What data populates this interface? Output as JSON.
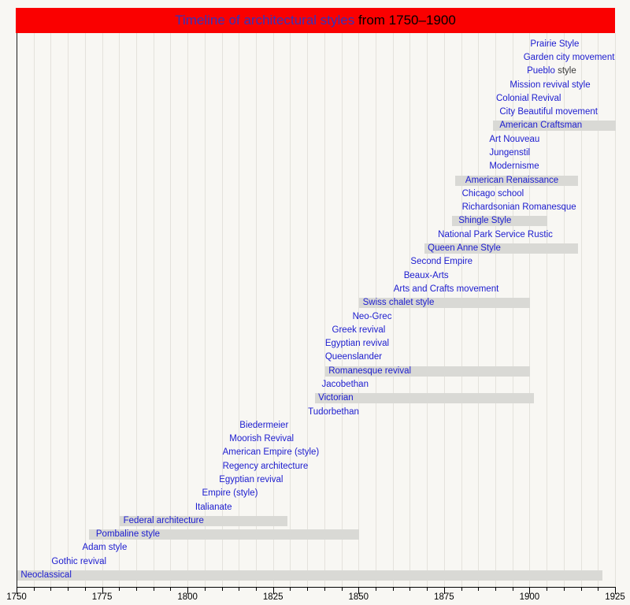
{
  "title": {
    "link_text": "Timeline of architectural styles",
    "plain_text": " from 1750–1900"
  },
  "colors": {
    "title_bar_bg": "#fa0000",
    "title_link": "#3333bb",
    "label_link": "#1b1bcf",
    "label_plain": "#3a3a3a",
    "bar_fill": "#d9d9d5",
    "gridline": "#e4e2dc",
    "background": "#f8f7f3",
    "axis": "#000000"
  },
  "axis": {
    "min_year": 1750,
    "max_year": 1925,
    "minor_step": 5,
    "major_step": 25,
    "tick_labels": [
      "1750",
      "1775",
      "1800",
      "1825",
      "1850",
      "1875",
      "1900",
      "1925"
    ]
  },
  "chart_data": {
    "type": "bar",
    "subtype": "gantt-timeline",
    "title": "Timeline of architectural styles from 1750–1900",
    "xlabel": "Year",
    "ylabel": "",
    "xlim": [
      1750,
      1925
    ],
    "grid": true,
    "legend": false,
    "rows": [
      {
        "label": "Prairie Style",
        "anchor_year": 1900,
        "bar": null
      },
      {
        "label": "Garden city movement",
        "anchor_year": 1898,
        "bar": null
      },
      {
        "label": "Pueblo",
        "suffix": " style",
        "anchor_year": 1899,
        "bar": null
      },
      {
        "label": "Mission revival style",
        "anchor_year": 1894,
        "bar": null
      },
      {
        "label": "Colonial Revival",
        "anchor_year": 1890,
        "bar": null
      },
      {
        "label": "City Beautiful movement",
        "anchor_year": 1891,
        "bar": null
      },
      {
        "label": "American Craftsman",
        "anchor_year": 1891,
        "bar": {
          "start": 1889,
          "end": 1925
        }
      },
      {
        "label": "Art Nouveau",
        "anchor_year": 1888,
        "bar": null
      },
      {
        "label": "Jungenstil",
        "anchor_year": 1888,
        "bar": null
      },
      {
        "label": "Modernisme",
        "anchor_year": 1888,
        "bar": null
      },
      {
        "label": "American Renaissance",
        "anchor_year": 1881,
        "bar": {
          "start": 1878,
          "end": 1914
        }
      },
      {
        "label": "Chicago school",
        "anchor_year": 1880,
        "bar": null
      },
      {
        "label": "Richardsonian Romanesque",
        "anchor_year": 1880,
        "bar": null
      },
      {
        "label": "Shingle Style",
        "anchor_year": 1879,
        "bar": {
          "start": 1877,
          "end": 1905
        }
      },
      {
        "label": "National Park Service Rustic",
        "anchor_year": 1873,
        "bar": null
      },
      {
        "label": "Queen Anne Style",
        "anchor_year": 1870,
        "bar": {
          "start": 1869,
          "end": 1914
        }
      },
      {
        "label": "Second Empire",
        "anchor_year": 1865,
        "bar": null
      },
      {
        "label": "Beaux-Arts",
        "anchor_year": 1863,
        "bar": null
      },
      {
        "label": "Arts and Crafts movement",
        "anchor_year": 1860,
        "bar": null
      },
      {
        "label": "Swiss chalet style",
        "anchor_year": 1851,
        "bar": {
          "start": 1850,
          "end": 1900
        }
      },
      {
        "label": "Neo-Grec",
        "anchor_year": 1848,
        "bar": null
      },
      {
        "label": "Greek revival",
        "anchor_year": 1842,
        "bar": null
      },
      {
        "label": "Egyptian revival",
        "anchor_year": 1840,
        "bar": null
      },
      {
        "label": "Queenslander",
        "anchor_year": 1840,
        "bar": null
      },
      {
        "label": "Romanesque revival",
        "anchor_year": 1841,
        "bar": {
          "start": 1840,
          "end": 1900
        }
      },
      {
        "label": "Jacobethan",
        "anchor_year": 1839,
        "bar": null
      },
      {
        "label": "Victorian",
        "anchor_year": 1838,
        "bar": {
          "start": 1837,
          "end": 1901
        }
      },
      {
        "label": "Tudorbethan",
        "anchor_year": 1835,
        "bar": null
      },
      {
        "label": "Biedermeier",
        "anchor_year": 1815,
        "bar": null
      },
      {
        "label": "Moorish Revival",
        "anchor_year": 1812,
        "bar": null
      },
      {
        "label": "American Empire (style)",
        "anchor_year": 1810,
        "bar": null
      },
      {
        "label": "Regency architecture",
        "anchor_year": 1810,
        "bar": null
      },
      {
        "label": "Egyptian revival",
        "anchor_year": 1809,
        "bar": null
      },
      {
        "label": "Empire (style)",
        "anchor_year": 1804,
        "bar": null
      },
      {
        "label": "Italianate",
        "anchor_year": 1802,
        "bar": null
      },
      {
        "label": "Federal architecture",
        "anchor_year": 1781,
        "bar": {
          "start": 1780,
          "end": 1829
        }
      },
      {
        "label": "Pombaline style",
        "anchor_year": 1773,
        "bar": {
          "start": 1771,
          "end": 1850
        }
      },
      {
        "label": "Adam style",
        "anchor_year": 1769,
        "bar": null
      },
      {
        "label": "Gothic revival",
        "anchor_year": 1760,
        "bar": null
      },
      {
        "label": "Neoclassical",
        "anchor_year": 1751,
        "bar": {
          "start": 1750,
          "end": 1921
        }
      }
    ]
  }
}
